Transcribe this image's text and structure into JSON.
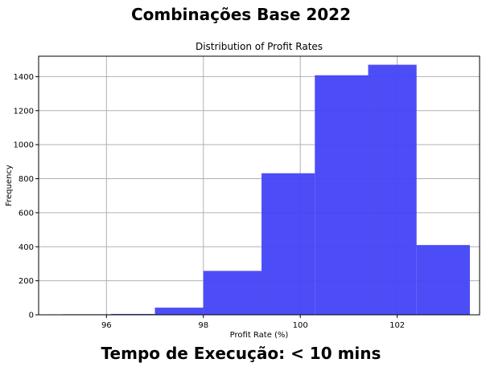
{
  "header": {
    "title": "Combinações Base 2022"
  },
  "footer": {
    "text": "Tempo de Execução: < 10 mins"
  },
  "chart_data": {
    "type": "bar",
    "title": "Distribution of Profit Rates",
    "xlabel": "Profit Rate (%)",
    "ylabel": "Frequency",
    "xlim": [
      94.6,
      103.7
    ],
    "ylim": [
      0,
      1520
    ],
    "xticks": [
      96,
      98,
      100,
      102
    ],
    "yticks": [
      0,
      200,
      400,
      600,
      800,
      1000,
      1200,
      1400
    ],
    "grid": true,
    "bar_color": "#4343f7",
    "bins": [
      {
        "x0": 95.1,
        "x1": 96.1,
        "value": 3
      },
      {
        "x0": 96.1,
        "x1": 97.0,
        "value": 5
      },
      {
        "x0": 97.0,
        "x1": 98.0,
        "value": 42
      },
      {
        "x0": 98.0,
        "x1": 99.2,
        "value": 258
      },
      {
        "x0": 99.2,
        "x1": 100.3,
        "value": 832
      },
      {
        "x0": 100.3,
        "x1": 101.4,
        "value": 1408
      },
      {
        "x0": 101.4,
        "x1": 102.4,
        "value": 1470
      },
      {
        "x0": 102.4,
        "x1": 103.5,
        "value": 410
      }
    ]
  }
}
